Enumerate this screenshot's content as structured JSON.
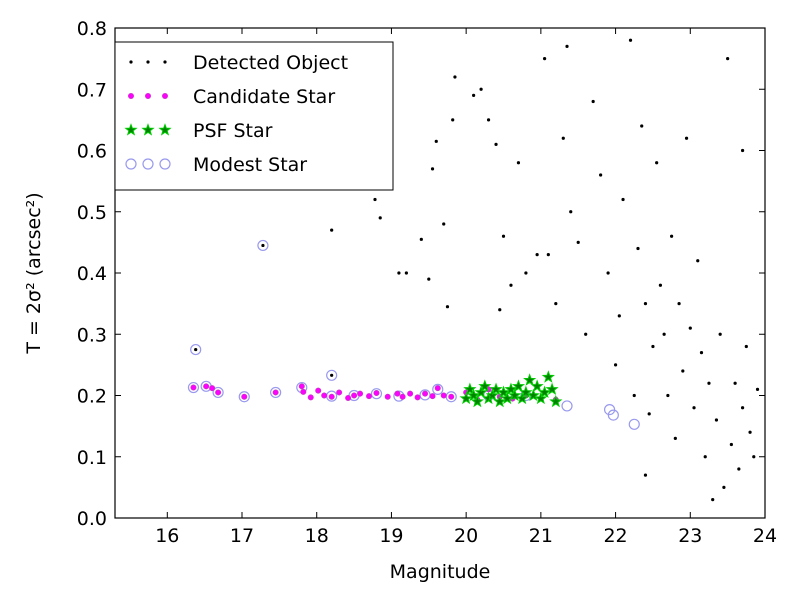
{
  "chart_data": {
    "type": "scatter",
    "xlabel": "Magnitude",
    "ylabel": "T = 2σ² (arcsec²)",
    "xlim": [
      15.3,
      24.0
    ],
    "ylim": [
      0.0,
      0.8
    ],
    "x_ticks": [
      16,
      17,
      18,
      19,
      20,
      21,
      22,
      23,
      24
    ],
    "y_ticks": [
      0.0,
      0.1,
      0.2,
      0.3,
      0.4,
      0.5,
      0.6,
      0.7,
      0.8
    ],
    "grid": false,
    "legend_position": "top-left",
    "colors": {
      "detected": "#000000",
      "candidate": "#ff00ff",
      "psf_fill": "#008000",
      "psf_edge": "#00cc00",
      "modest_edge": "#9999ee"
    },
    "series": [
      {
        "name": "Detected Object",
        "marker": "dot",
        "points": [
          [
            16.38,
            0.275
          ],
          [
            17.28,
            0.445
          ],
          [
            18.2,
            0.233
          ],
          [
            17.88,
            0.63
          ],
          [
            18.2,
            0.47
          ],
          [
            18.42,
            0.81
          ],
          [
            18.6,
            0.6
          ],
          [
            18.78,
            0.52
          ],
          [
            18.85,
            0.49
          ],
          [
            19.1,
            0.4
          ],
          [
            19.2,
            0.4
          ],
          [
            19.4,
            0.455
          ],
          [
            19.5,
            0.39
          ],
          [
            19.55,
            0.57
          ],
          [
            19.6,
            0.615
          ],
          [
            19.7,
            0.48
          ],
          [
            19.82,
            0.65
          ],
          [
            19.85,
            0.72
          ],
          [
            19.75,
            0.345
          ],
          [
            20.1,
            0.69
          ],
          [
            20.2,
            0.7
          ],
          [
            20.3,
            0.65
          ],
          [
            20.4,
            0.61
          ],
          [
            20.45,
            0.34
          ],
          [
            20.5,
            0.46
          ],
          [
            20.6,
            0.38
          ],
          [
            20.7,
            0.58
          ],
          [
            20.8,
            0.4
          ],
          [
            20.95,
            0.43
          ],
          [
            21.05,
            0.75
          ],
          [
            21.1,
            0.43
          ],
          [
            21.2,
            0.35
          ],
          [
            21.3,
            0.62
          ],
          [
            21.35,
            0.77
          ],
          [
            21.4,
            0.5
          ],
          [
            21.5,
            0.45
          ],
          [
            21.6,
            0.3
          ],
          [
            21.7,
            0.68
          ],
          [
            21.8,
            0.56
          ],
          [
            21.9,
            0.4
          ],
          [
            22.0,
            0.25
          ],
          [
            22.05,
            0.33
          ],
          [
            22.1,
            0.52
          ],
          [
            22.2,
            0.78
          ],
          [
            22.25,
            0.2
          ],
          [
            22.3,
            0.44
          ],
          [
            22.35,
            0.64
          ],
          [
            22.4,
            0.35
          ],
          [
            22.45,
            0.17
          ],
          [
            22.5,
            0.28
          ],
          [
            22.55,
            0.58
          ],
          [
            22.6,
            0.38
          ],
          [
            22.65,
            0.3
          ],
          [
            22.7,
            0.2
          ],
          [
            22.75,
            0.46
          ],
          [
            22.8,
            0.13
          ],
          [
            22.85,
            0.35
          ],
          [
            22.9,
            0.24
          ],
          [
            22.95,
            0.62
          ],
          [
            23.0,
            0.31
          ],
          [
            23.05,
            0.18
          ],
          [
            23.1,
            0.42
          ],
          [
            23.15,
            0.27
          ],
          [
            23.2,
            0.1
          ],
          [
            23.25,
            0.22
          ],
          [
            23.3,
            0.03
          ],
          [
            23.35,
            0.16
          ],
          [
            23.4,
            0.3
          ],
          [
            23.45,
            0.05
          ],
          [
            23.5,
            0.75
          ],
          [
            23.55,
            0.12
          ],
          [
            23.6,
            0.22
          ],
          [
            23.65,
            0.08
          ],
          [
            23.7,
            0.18
          ],
          [
            23.75,
            0.28
          ],
          [
            23.8,
            0.14
          ],
          [
            23.85,
            0.1
          ],
          [
            23.9,
            0.21
          ],
          [
            23.7,
            0.6
          ],
          [
            22.4,
            0.07
          ]
        ]
      },
      {
        "name": "Candidate Star",
        "marker": "small-circle",
        "points": [
          [
            16.35,
            0.213
          ],
          [
            16.52,
            0.215
          ],
          [
            16.6,
            0.212
          ],
          [
            16.68,
            0.205
          ],
          [
            17.03,
            0.198
          ],
          [
            17.45,
            0.205
          ],
          [
            17.8,
            0.215
          ],
          [
            17.82,
            0.206
          ],
          [
            17.92,
            0.197
          ],
          [
            18.02,
            0.208
          ],
          [
            18.1,
            0.2
          ],
          [
            18.2,
            0.198
          ],
          [
            18.3,
            0.205
          ],
          [
            18.42,
            0.196
          ],
          [
            18.5,
            0.2
          ],
          [
            18.58,
            0.203
          ],
          [
            18.7,
            0.199
          ],
          [
            18.8,
            0.204
          ],
          [
            18.95,
            0.198
          ],
          [
            19.08,
            0.203
          ],
          [
            19.15,
            0.198
          ],
          [
            19.25,
            0.203
          ],
          [
            19.35,
            0.197
          ],
          [
            19.45,
            0.203
          ],
          [
            19.55,
            0.199
          ],
          [
            19.62,
            0.212
          ],
          [
            19.7,
            0.2
          ],
          [
            19.8,
            0.198
          ],
          [
            20.0,
            0.205
          ],
          [
            20.15,
            0.193
          ],
          [
            20.3,
            0.21
          ],
          [
            20.45,
            0.198
          ],
          [
            20.62,
            0.195
          ],
          [
            20.8,
            0.2
          ],
          [
            21.2,
            0.193
          ]
        ]
      },
      {
        "name": "PSF Star",
        "marker": "star",
        "points": [
          [
            20.0,
            0.195
          ],
          [
            20.05,
            0.21
          ],
          [
            20.1,
            0.2
          ],
          [
            20.15,
            0.19
          ],
          [
            20.2,
            0.205
          ],
          [
            20.25,
            0.215
          ],
          [
            20.3,
            0.195
          ],
          [
            20.35,
            0.2
          ],
          [
            20.4,
            0.21
          ],
          [
            20.45,
            0.19
          ],
          [
            20.5,
            0.205
          ],
          [
            20.55,
            0.195
          ],
          [
            20.6,
            0.21
          ],
          [
            20.65,
            0.2
          ],
          [
            20.7,
            0.215
          ],
          [
            20.75,
            0.195
          ],
          [
            20.8,
            0.205
          ],
          [
            20.85,
            0.225
          ],
          [
            20.9,
            0.2
          ],
          [
            20.95,
            0.215
          ],
          [
            21.0,
            0.195
          ],
          [
            21.05,
            0.205
          ],
          [
            21.1,
            0.23
          ],
          [
            21.15,
            0.21
          ],
          [
            21.2,
            0.19
          ]
        ]
      },
      {
        "name": "Modest Star",
        "marker": "hollow-circle",
        "points": [
          [
            16.35,
            0.213
          ],
          [
            16.38,
            0.275
          ],
          [
            16.52,
            0.215
          ],
          [
            16.68,
            0.205
          ],
          [
            17.03,
            0.198
          ],
          [
            17.28,
            0.445
          ],
          [
            17.45,
            0.205
          ],
          [
            17.8,
            0.213
          ],
          [
            18.2,
            0.233
          ],
          [
            18.2,
            0.199
          ],
          [
            18.5,
            0.2
          ],
          [
            18.8,
            0.203
          ],
          [
            19.1,
            0.199
          ],
          [
            19.45,
            0.201
          ],
          [
            19.62,
            0.21
          ],
          [
            19.8,
            0.198
          ],
          [
            20.3,
            0.2
          ],
          [
            20.8,
            0.2
          ],
          [
            21.35,
            0.183
          ],
          [
            21.92,
            0.177
          ],
          [
            21.97,
            0.168
          ],
          [
            22.25,
            0.153
          ]
        ]
      }
    ]
  }
}
